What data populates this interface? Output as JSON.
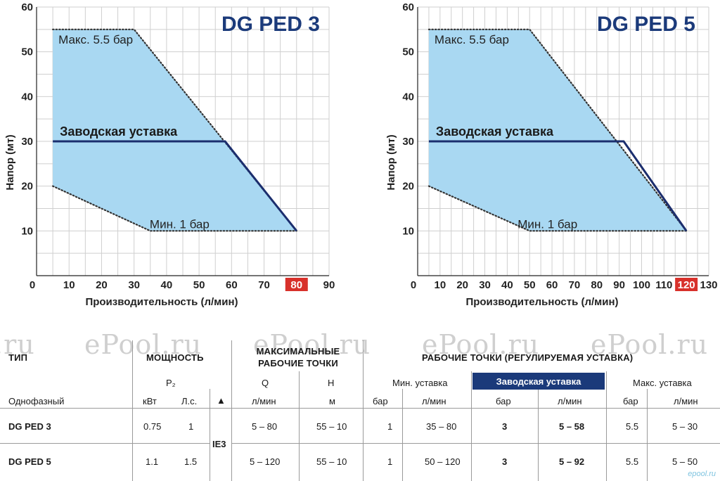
{
  "chart_data": [
    {
      "type": "area",
      "title": "DG PED 3",
      "xlabel": "Производительность (л/мин)",
      "ylabel": "Напор (мт)",
      "xlim": [
        0,
        90
      ],
      "ylim": [
        0,
        60
      ],
      "xticks": [
        "0",
        "10",
        "20",
        "30",
        "40",
        "50",
        "60",
        "70",
        "80",
        "90"
      ],
      "yticks": [
        "0",
        "10",
        "20",
        "30",
        "40",
        "50",
        "60"
      ],
      "highlight_tick": "80",
      "grid": true,
      "region": [
        [
          5,
          55
        ],
        [
          30,
          55
        ],
        [
          80,
          10
        ],
        [
          35,
          10
        ],
        [
          5,
          20
        ]
      ],
      "series": [
        {
          "name": "Макс. 5.5 бар",
          "x": [
            5,
            30,
            80
          ],
          "y": [
            55,
            55,
            10
          ]
        },
        {
          "name": "Заводская уставка",
          "x": [
            5,
            58,
            80
          ],
          "y": [
            30,
            30,
            10
          ]
        },
        {
          "name": "Мин. 1 бар",
          "x": [
            5,
            35,
            80
          ],
          "y": [
            20,
            10,
            10
          ]
        }
      ]
    },
    {
      "type": "area",
      "title": "DG PED 5",
      "xlabel": "Производительность (л/мин)",
      "ylabel": "Напор (мт)",
      "xlim": [
        0,
        130
      ],
      "ylim": [
        0,
        60
      ],
      "xticks": [
        "0",
        "10",
        "20",
        "30",
        "40",
        "50",
        "60",
        "70",
        "80",
        "90",
        "100",
        "110",
        "120",
        "130"
      ],
      "yticks": [
        "0",
        "10",
        "20",
        "30",
        "40",
        "50",
        "60"
      ],
      "highlight_tick": "120",
      "grid": true,
      "region": [
        [
          5,
          55
        ],
        [
          50,
          55
        ],
        [
          120,
          10
        ],
        [
          50,
          10
        ],
        [
          5,
          20
        ]
      ],
      "series": [
        {
          "name": "Макс. 5.5 бар",
          "x": [
            5,
            50,
            120
          ],
          "y": [
            55,
            55,
            10
          ]
        },
        {
          "name": "Заводская уставка",
          "x": [
            5,
            92,
            120
          ],
          "y": [
            30,
            30,
            10
          ]
        },
        {
          "name": "Мин. 1 бар",
          "x": [
            5,
            50,
            120
          ],
          "y": [
            20,
            10,
            10
          ]
        }
      ]
    }
  ],
  "colors": {
    "fill": "#a9d8f2",
    "factory_line": "#1b2e6e",
    "title": "#1b3a7a",
    "highlight": "#d8312b",
    "grid": "#cfcfcf"
  },
  "watermarks": [
    ".ru",
    "ePool.ru",
    "ePool.ru",
    "ePool.ru",
    "ePool.ru"
  ],
  "table": {
    "type_header": "ТИП",
    "power_header": "МОЩНОСТЬ",
    "max_points_header": "МАКСИМАЛЬНЫЕ РАБОЧИЕ ТОЧКИ",
    "work_points_header": "РАБОЧИЕ ТОЧКИ (РЕГУЛИРУЕМАЯ УСТАВКА)",
    "p2": "P₂",
    "q": "Q",
    "h": "H",
    "min_setting": "Мин. уставка",
    "factory_setting": "Заводская уставка",
    "max_setting": "Макс. уставка",
    "phase": "Однофазный",
    "units": {
      "kw": "кВт",
      "hp": "Л.с.",
      "triangle": "▲",
      "lpm": "л/мин",
      "m": "м",
      "bar": "бар"
    },
    "ie": "IE3",
    "rows": [
      {
        "model": "DG PED 3",
        "kw": "0.75",
        "hp": "1",
        "q": "5 – 80",
        "h": "55 – 10",
        "min_bar": "1",
        "min_lpm": "35 – 80",
        "fac_bar": "3",
        "fac_lpm": "5 – 58",
        "max_bar": "5.5",
        "max_lpm": "5 – 30"
      },
      {
        "model": "DG PED 5",
        "kw": "1.1",
        "hp": "1.5",
        "q": "5 – 120",
        "h": "55 – 10",
        "min_bar": "1",
        "min_lpm": "50 – 120",
        "fac_bar": "3",
        "fac_lpm": "5 – 92",
        "max_bar": "5.5",
        "max_lpm": "5 – 50"
      }
    ]
  },
  "corner_logo": "epool.ru"
}
